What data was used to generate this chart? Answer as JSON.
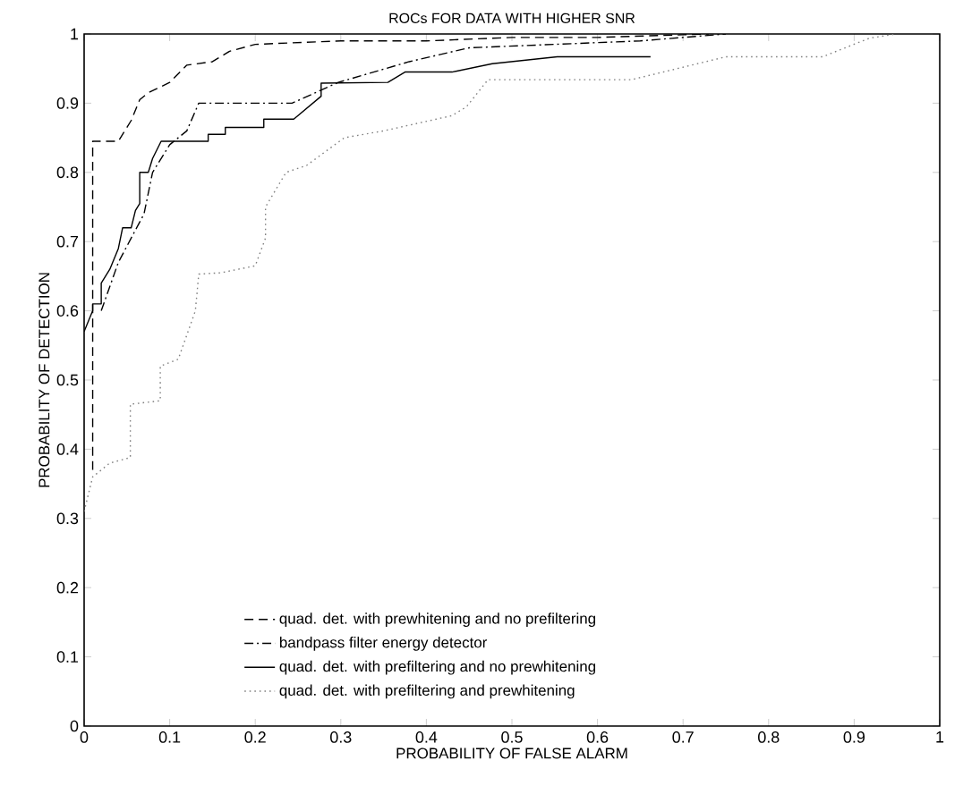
{
  "chart_data": {
    "type": "line",
    "title": "ROCs FOR DATA WITH HIGHER SNR",
    "xlabel": "PROBABILITY OF FALSE ALARM",
    "ylabel": "PROBABILITY OF DETECTION",
    "xlim": [
      0,
      1
    ],
    "ylim": [
      0,
      1
    ],
    "xticks": [
      0,
      0.1,
      0.2,
      0.3,
      0.4,
      0.5,
      0.6,
      0.7,
      0.8,
      0.9,
      1
    ],
    "yticks": [
      0,
      0.1,
      0.2,
      0.3,
      0.4,
      0.5,
      0.6,
      0.7,
      0.8,
      0.9,
      1
    ],
    "grid": false,
    "legend": "bottom left",
    "marker": "none",
    "series": [
      {
        "name": "quad. det. with prewhitening and no prefiltering",
        "color": "#000000",
        "line_style": "dashed",
        "x": [
          0.01,
          0.01,
          0.04,
          0.055,
          0.065,
          0.075,
          0.1,
          0.12,
          0.15,
          0.17,
          0.2,
          0.3,
          0.4,
          0.5,
          0.6,
          0.73
        ],
        "values": [
          0.37,
          0.845,
          0.845,
          0.875,
          0.905,
          0.915,
          0.93,
          0.955,
          0.96,
          0.975,
          0.985,
          0.99,
          0.99,
          0.995,
          0.995,
          1.0
        ]
      },
      {
        "name": "bandpass filter energy detector",
        "color": "#000000",
        "line_style": "dashdot",
        "x": [
          0.02,
          0.04,
          0.07,
          0.08,
          0.1,
          0.12,
          0.134,
          0.243,
          0.297,
          0.38,
          0.45,
          0.55,
          0.65,
          0.75
        ],
        "values": [
          0.6,
          0.67,
          0.74,
          0.8,
          0.84,
          0.86,
          0.9,
          0.9,
          0.93,
          0.96,
          0.98,
          0.985,
          0.99,
          1.0
        ]
      },
      {
        "name": "quad. det. with prefiltering and no prewhitening",
        "color": "#000000",
        "line_style": "solid",
        "x": [
          0,
          0.01,
          0.01,
          0.02,
          0.02,
          0.03,
          0.04,
          0.045,
          0.055,
          0.06,
          0.065,
          0.065,
          0.075,
          0.08,
          0.09,
          0.145,
          0.145,
          0.165,
          0.165,
          0.21,
          0.21,
          0.245,
          0.277,
          0.277,
          0.355,
          0.375,
          0.43,
          0.477,
          0.553,
          0.662
        ],
        "values": [
          0.57,
          0.6,
          0.61,
          0.61,
          0.64,
          0.66,
          0.69,
          0.72,
          0.72,
          0.745,
          0.755,
          0.8,
          0.8,
          0.82,
          0.845,
          0.845,
          0.855,
          0.855,
          0.865,
          0.865,
          0.877,
          0.877,
          0.91,
          0.929,
          0.93,
          0.945,
          0.945,
          0.957,
          0.967,
          0.967
        ]
      },
      {
        "name": "quad. det. with prefiltering and prewhitening",
        "color": "#808080",
        "line_style": "dotted",
        "x": [
          0,
          0.01,
          0.03,
          0.054,
          0.054,
          0.089,
          0.089,
          0.11,
          0.13,
          0.134,
          0.16,
          0.2,
          0.212,
          0.212,
          0.236,
          0.26,
          0.304,
          0.35,
          0.43,
          0.447,
          0.472,
          0.64,
          0.75,
          0.863,
          0.918,
          0.95
        ],
        "values": [
          0.31,
          0.36,
          0.38,
          0.388,
          0.465,
          0.47,
          0.52,
          0.53,
          0.6,
          0.653,
          0.655,
          0.665,
          0.705,
          0.75,
          0.8,
          0.81,
          0.85,
          0.86,
          0.882,
          0.895,
          0.934,
          0.934,
          0.967,
          0.967,
          0.994,
          1.0
        ]
      }
    ]
  }
}
